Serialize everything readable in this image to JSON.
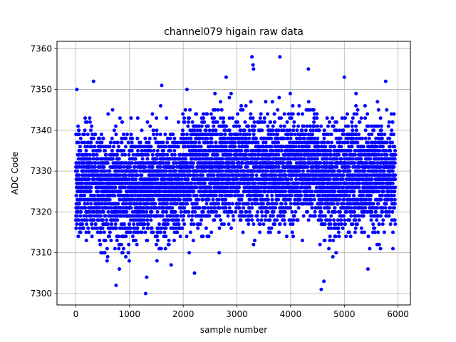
{
  "chart_data": {
    "type": "scatter",
    "title": "channel079 higain raw data",
    "xlabel": "sample number",
    "ylabel": "ADC Code",
    "xlim": [
      -350,
      6230
    ],
    "ylim": [
      7297.2,
      7361.8
    ],
    "xticks": [
      0,
      1000,
      2000,
      3000,
      4000,
      5000,
      6000
    ],
    "yticks": [
      7300,
      7310,
      7320,
      7330,
      7340,
      7350,
      7360
    ],
    "grid": true,
    "marker_color": "#0000ff",
    "n_samples": 6000,
    "noise_sd": 6.5,
    "baseline": {
      "x": [
        0,
        500,
        1000,
        1500,
        1900,
        2000,
        2500,
        3000,
        3300,
        3500,
        4000,
        4500,
        4550,
        5000,
        5500,
        5950
      ],
      "y": [
        7327.5,
        7326.5,
        7325.5,
        7326.5,
        7327,
        7329.5,
        7330.5,
        7331,
        7330,
        7329.5,
        7331,
        7331,
        7327,
        7328.5,
        7329.5,
        7329.5
      ]
    },
    "outliers": [
      {
        "x": 20,
        "y": 7350
      },
      {
        "x": 330,
        "y": 7352
      },
      {
        "x": 750,
        "y": 7302
      },
      {
        "x": 1300,
        "y": 7300
      },
      {
        "x": 1320,
        "y": 7304
      },
      {
        "x": 1600,
        "y": 7351
      },
      {
        "x": 2070,
        "y": 7350
      },
      {
        "x": 2210,
        "y": 7305
      },
      {
        "x": 2800,
        "y": 7353
      },
      {
        "x": 3280,
        "y": 7358
      },
      {
        "x": 3300,
        "y": 7356
      },
      {
        "x": 3310,
        "y": 7355
      },
      {
        "x": 3800,
        "y": 7358
      },
      {
        "x": 4330,
        "y": 7355
      },
      {
        "x": 4570,
        "y": 7301
      },
      {
        "x": 4620,
        "y": 7303
      },
      {
        "x": 5000,
        "y": 7353
      },
      {
        "x": 5440,
        "y": 7306
      },
      {
        "x": 5770,
        "y": 7352
      }
    ]
  }
}
